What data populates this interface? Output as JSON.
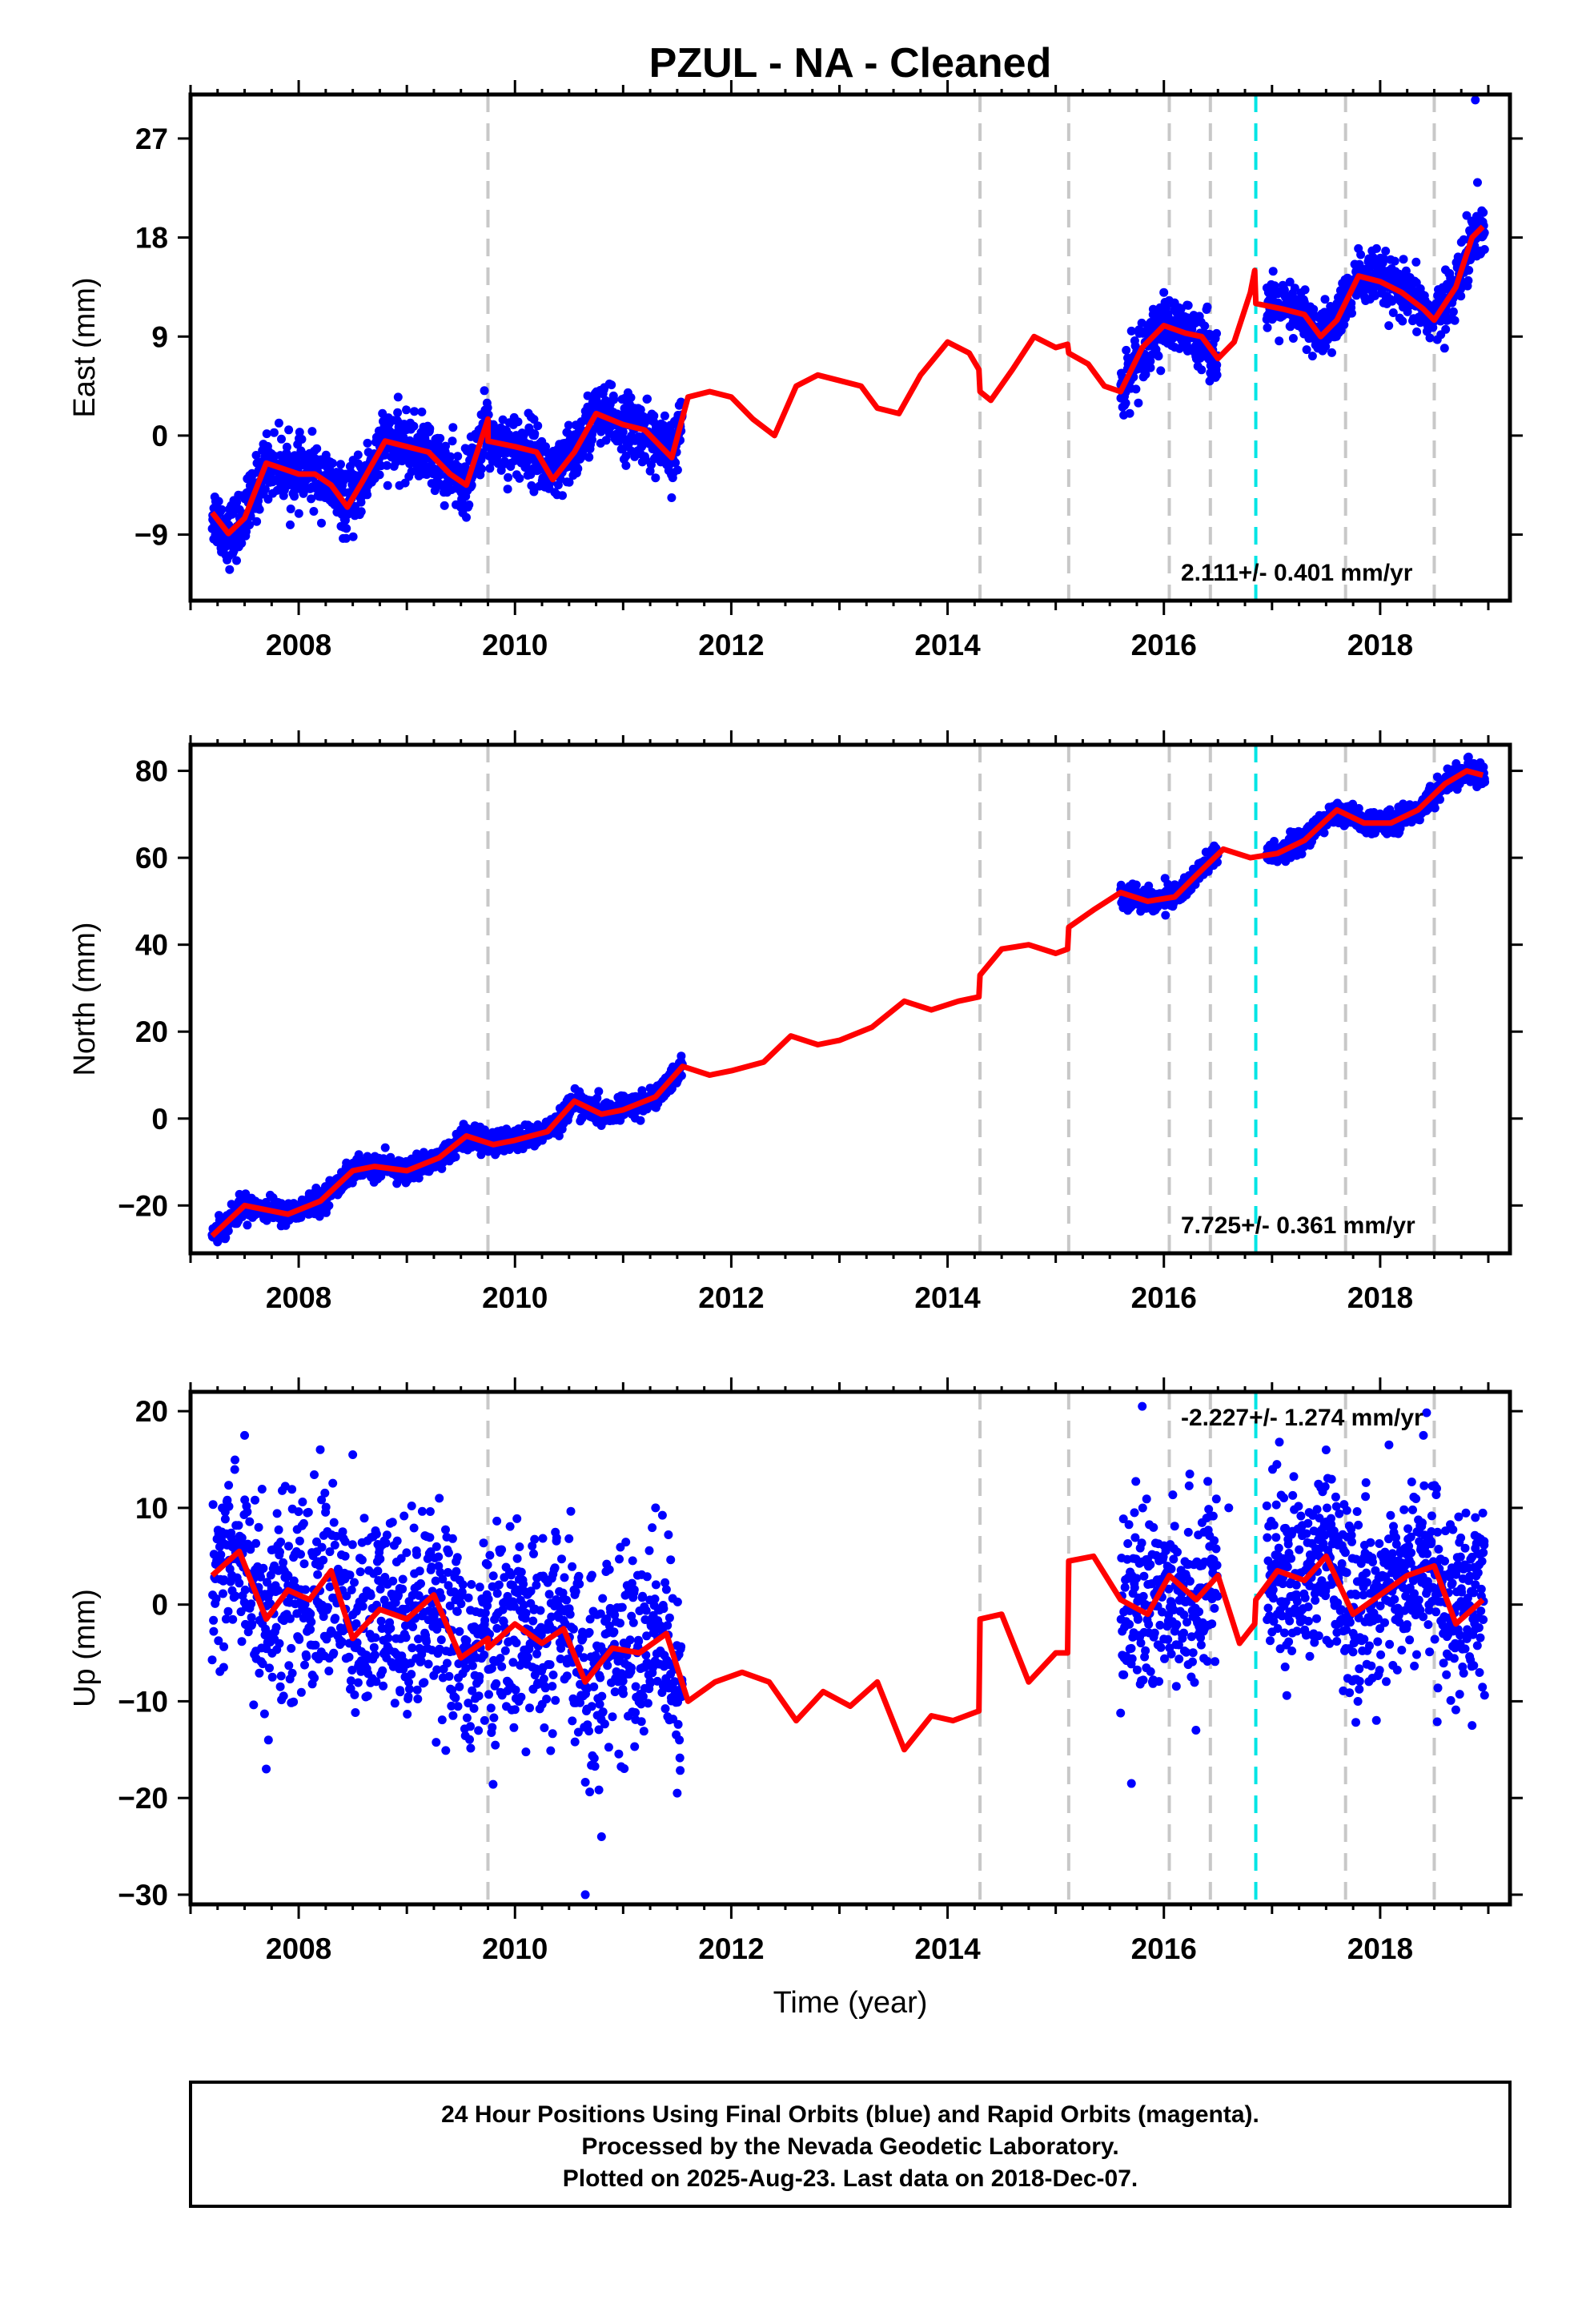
{
  "page": {
    "title": "PZUL  - NA - Cleaned",
    "footer": [
      "24 Hour Positions Using Final Orbits (blue) and Rapid Orbits (magenta).",
      "Processed by the Nevada Geodetic Laboratory.",
      "Plotted on 2025-Aug-23. Last data on 2018-Dec-07."
    ]
  },
  "colors": {
    "points": "#0000ff",
    "model": "#ff0000",
    "equipment_change": "#c8c8c8",
    "earthquake": "#00e5e5"
  },
  "chart_data": [
    {
      "type": "scatter",
      "panel": "East",
      "ylabel": "East (mm)",
      "xlabel": "",
      "xlim": [
        2007.0,
        2019.2
      ],
      "ylim": [
        -15,
        31
      ],
      "x_ticks": [
        2008,
        2010,
        2012,
        2014,
        2016,
        2018
      ],
      "y_ticks": [
        -9,
        0,
        9,
        18,
        27
      ],
      "rate_text": "2.111+/- 0.401 mm/yr",
      "rate_position": "bottom-right",
      "equipment_change_years": [
        2009.75,
        2014.3,
        2015.12,
        2016.05,
        2016.43,
        2017.68,
        2018.5
      ],
      "earthquake_years": [
        2016.85
      ],
      "model": {
        "name": "",
        "x": [
          2007.2,
          2007.35,
          2007.5,
          2007.7,
          2007.85,
          2008.0,
          2008.15,
          2008.3,
          2008.45,
          2008.6,
          2008.8,
          2009.0,
          2009.2,
          2009.4,
          2009.55,
          2009.75,
          2009.751,
          2010.0,
          2010.2,
          2010.35,
          2010.55,
          2010.75,
          2011.0,
          2011.2,
          2011.45,
          2011.6,
          2011.8,
          2012.0,
          2012.2,
          2012.4,
          2012.6,
          2012.8,
          2013.0,
          2013.2,
          2013.35,
          2013.55,
          2013.75,
          2014.0,
          2014.2,
          2014.29,
          2014.3,
          2014.4,
          2014.6,
          2014.8,
          2015.0,
          2015.11,
          2015.12,
          2015.3,
          2015.45,
          2015.6,
          2015.8,
          2016.0,
          2016.2,
          2016.35,
          2016.5,
          2016.65,
          2016.8,
          2016.84,
          2016.85,
          2017.1,
          2017.3,
          2017.45,
          2017.6,
          2017.8,
          2018.0,
          2018.2,
          2018.4,
          2018.5,
          2018.7,
          2018.85,
          2018.95
        ],
        "y": [
          -7,
          -8.9,
          -7.5,
          -2.5,
          -3.0,
          -3.5,
          -3.5,
          -4.5,
          -6.5,
          -4.0,
          -0.5,
          -1.0,
          -1.5,
          -3.5,
          -4.5,
          1.5,
          -0.5,
          -1.0,
          -1.5,
          -4.0,
          -1.5,
          2.0,
          1.0,
          0.5,
          -2.0,
          3.5,
          4.0,
          3.5,
          1.5,
          0,
          4.5,
          5.5,
          5.0,
          4.5,
          2.5,
          2.0,
          5.5,
          8.5,
          7.5,
          6.0,
          4.0,
          3.2,
          6.0,
          9.0,
          8.0,
          8.3,
          7.5,
          6.5,
          4.5,
          4.0,
          8.0,
          10.0,
          9.3,
          9.0,
          7.0,
          8.5,
          13.0,
          15.0,
          12.0,
          11.5,
          11.0,
          9.0,
          10.5,
          14.5,
          14.0,
          13.0,
          11.5,
          10.5,
          13.5,
          18.0,
          19.0
        ]
      },
      "points": [
        {
          "x": 2007.3,
          "y": -8.5
        },
        {
          "x": 2007.4,
          "y": -10.5
        },
        {
          "x": 2007.55,
          "y": -7.0
        },
        {
          "x": 2007.7,
          "y": -2.0
        },
        {
          "x": 2007.9,
          "y": -3.5
        },
        {
          "x": 2008.1,
          "y": -3.0
        },
        {
          "x": 2008.3,
          "y": -4.0
        },
        {
          "x": 2008.45,
          "y": -6.5
        },
        {
          "x": 2008.6,
          "y": -3.0
        },
        {
          "x": 2008.8,
          "y": 1.0
        },
        {
          "x": 2009.0,
          "y": -0.5
        },
        {
          "x": 2009.2,
          "y": -2.0
        },
        {
          "x": 2009.4,
          "y": -4.0
        },
        {
          "x": 2009.6,
          "y": -4.5
        },
        {
          "x": 2009.8,
          "y": 1.0
        },
        {
          "x": 2010.0,
          "y": -1.5
        },
        {
          "x": 2010.2,
          "y": -1.0
        },
        {
          "x": 2010.4,
          "y": -3.5
        },
        {
          "x": 2010.6,
          "y": 0.0
        },
        {
          "x": 2010.8,
          "y": 2.5
        },
        {
          "x": 2011.0,
          "y": 1.5
        },
        {
          "x": 2011.2,
          "y": 0.0
        },
        {
          "x": 2011.4,
          "y": -1.5
        },
        {
          "x": 2011.5,
          "y": 1.5
        },
        {
          "x": 2015.7,
          "y": 9.5
        },
        {
          "x": 2015.9,
          "y": 11.0
        },
        {
          "x": 2016.1,
          "y": 9.0
        },
        {
          "x": 2016.3,
          "y": 9.0
        },
        {
          "x": 2016.45,
          "y": 7.5
        },
        {
          "x": 2017.0,
          "y": 12.0
        },
        {
          "x": 2017.2,
          "y": 10.5
        },
        {
          "x": 2017.4,
          "y": 9.5
        },
        {
          "x": 2017.6,
          "y": 12.0
        },
        {
          "x": 2017.8,
          "y": 14.0
        },
        {
          "x": 2018.0,
          "y": 13.5
        },
        {
          "x": 2018.2,
          "y": 12.5
        },
        {
          "x": 2018.4,
          "y": 11.0
        },
        {
          "x": 2018.6,
          "y": 12.5
        },
        {
          "x": 2018.8,
          "y": 20.0
        },
        {
          "x": 2018.9,
          "y": 23.0
        },
        {
          "x": 2018.88,
          "y": 30.5
        }
      ],
      "point_density": {
        "segments": [
          {
            "x0": 2007.2,
            "x1": 2011.55,
            "count": 1400,
            "spread": 1.4
          },
          {
            "x0": 2015.6,
            "x1": 2016.5,
            "count": 260,
            "spread": 1.3
          },
          {
            "x0": 2016.95,
            "x1": 2018.97,
            "count": 640,
            "spread": 1.2
          }
        ]
      }
    },
    {
      "type": "scatter",
      "panel": "North",
      "ylabel": "North (mm)",
      "xlabel": "",
      "xlim": [
        2007.0,
        2019.2
      ],
      "ylim": [
        -31,
        86
      ],
      "x_ticks": [
        2008,
        2010,
        2012,
        2014,
        2016,
        2018
      ],
      "y_ticks": [
        -20,
        0,
        20,
        40,
        60,
        80
      ],
      "rate_text": "7.725+/- 0.361 mm/yr",
      "rate_position": "bottom-right",
      "equipment_change_years": [
        2009.75,
        2014.3,
        2015.12,
        2016.05,
        2016.43,
        2017.68,
        2018.5
      ],
      "earthquake_years": [
        2016.85
      ],
      "model": {
        "name": "",
        "x": [
          2007.2,
          2007.5,
          2007.9,
          2008.2,
          2008.5,
          2008.7,
          2009.0,
          2009.3,
          2009.55,
          2009.8,
          2010.0,
          2010.3,
          2010.55,
          2010.8,
          2011.0,
          2011.3,
          2011.55,
          2011.8,
          2012.0,
          2012.3,
          2012.55,
          2012.8,
          2013.0,
          2013.3,
          2013.6,
          2013.85,
          2014.1,
          2014.29,
          2014.3,
          2014.5,
          2014.75,
          2015.0,
          2015.11,
          2015.12,
          2015.35,
          2015.6,
          2015.85,
          2016.1,
          2016.3,
          2016.55,
          2016.8,
          2017.05,
          2017.3,
          2017.6,
          2017.85,
          2018.1,
          2018.35,
          2018.6,
          2018.8,
          2018.95
        ],
        "y": [
          -27,
          -20,
          -22,
          -19,
          -12,
          -11,
          -12,
          -9,
          -4,
          -6,
          -5,
          -3,
          4,
          1,
          2,
          5,
          12,
          10,
          11,
          13,
          19,
          17,
          18,
          21,
          27,
          25,
          27,
          28,
          33,
          39,
          40,
          38,
          39,
          44,
          48,
          52,
          50,
          51,
          56,
          62,
          60,
          61,
          64,
          71,
          68,
          68,
          71,
          77,
          80,
          79
        ]
      },
      "points": [
        {
          "x": 2007.3,
          "y": -26
        },
        {
          "x": 2007.6,
          "y": -19
        },
        {
          "x": 2008.0,
          "y": -21
        },
        {
          "x": 2008.5,
          "y": -12
        },
        {
          "x": 2009.0,
          "y": -11
        },
        {
          "x": 2009.5,
          "y": -5
        },
        {
          "x": 2010.0,
          "y": -5
        },
        {
          "x": 2010.5,
          "y": 3
        },
        {
          "x": 2011.0,
          "y": 2
        },
        {
          "x": 2011.5,
          "y": 11
        },
        {
          "x": 2015.7,
          "y": 50
        },
        {
          "x": 2016.0,
          "y": 51
        },
        {
          "x": 2016.4,
          "y": 57
        },
        {
          "x": 2017.1,
          "y": 62
        },
        {
          "x": 2017.6,
          "y": 70
        },
        {
          "x": 2018.0,
          "y": 68
        },
        {
          "x": 2018.5,
          "y": 76
        },
        {
          "x": 2018.9,
          "y": 80
        }
      ],
      "point_density": {
        "segments": [
          {
            "x0": 2007.2,
            "x1": 2011.55,
            "count": 1400,
            "spread": 1.3
          },
          {
            "x0": 2015.6,
            "x1": 2016.5,
            "count": 260,
            "spread": 1.4
          },
          {
            "x0": 2016.95,
            "x1": 2018.97,
            "count": 640,
            "spread": 1.2
          }
        ]
      }
    },
    {
      "type": "scatter",
      "panel": "Up",
      "ylabel": "Up (mm)",
      "xlabel": "Time (year)",
      "xlim": [
        2007.0,
        2019.2
      ],
      "ylim": [
        -31,
        22
      ],
      "x_ticks": [
        2008,
        2010,
        2012,
        2014,
        2016,
        2018
      ],
      "y_ticks": [
        -30,
        -20,
        -10,
        0,
        10,
        20
      ],
      "rate_text": "-2.227+/- 1.274 mm/yr",
      "rate_position": "top-right",
      "equipment_change_years": [
        2009.75,
        2014.3,
        2015.12,
        2016.05,
        2016.43,
        2017.68,
        2018.5
      ],
      "earthquake_years": [
        2016.85
      ],
      "model": {
        "name": "",
        "x": [
          2007.2,
          2007.45,
          2007.7,
          2007.9,
          2008.1,
          2008.3,
          2008.5,
          2008.75,
          2009.0,
          2009.25,
          2009.5,
          2009.75,
          2009.751,
          2010.0,
          2010.25,
          2010.45,
          2010.65,
          2010.9,
          2011.15,
          2011.4,
          2011.6,
          2011.85,
          2012.1,
          2012.35,
          2012.6,
          2012.85,
          2013.1,
          2013.35,
          2013.6,
          2013.85,
          2014.05,
          2014.29,
          2014.3,
          2014.5,
          2014.75,
          2015.0,
          2015.11,
          2015.12,
          2015.35,
          2015.6,
          2015.85,
          2016.05,
          2016.3,
          2016.5,
          2016.7,
          2016.84,
          2016.85,
          2017.05,
          2017.3,
          2017.5,
          2017.75,
          2018.0,
          2018.25,
          2018.5,
          2018.7,
          2018.95
        ],
        "y": [
          3,
          5.5,
          -1.5,
          1.5,
          0.5,
          3.5,
          -3.5,
          -0.5,
          -1.5,
          1.0,
          -5.5,
          -3.5,
          -4.5,
          -2.0,
          -4.0,
          -2.5,
          -8.0,
          -4.5,
          -5.0,
          -3.0,
          -10.0,
          -8.0,
          -7.0,
          -8.0,
          -12.0,
          -9.0,
          -10.5,
          -8.0,
          -15.0,
          -11.5,
          -12.0,
          -11.0,
          -1.5,
          -1.0,
          -8.0,
          -5.0,
          -5.0,
          4.5,
          5.0,
          0.5,
          -1.0,
          3.0,
          0.5,
          3.0,
          -4.0,
          -2.0,
          0.5,
          3.5,
          2.5,
          5.0,
          -1.0,
          1.0,
          3.0,
          4.0,
          -2.0,
          0.5
        ]
      },
      "points": [
        {
          "x": 2007.5,
          "y": 17.5
        },
        {
          "x": 2007.7,
          "y": -17
        },
        {
          "x": 2008.5,
          "y": 15.5
        },
        {
          "x": 2009.3,
          "y": 11
        },
        {
          "x": 2010.65,
          "y": -30
        },
        {
          "x": 2010.8,
          "y": -24
        },
        {
          "x": 2011.3,
          "y": 10
        },
        {
          "x": 2011.5,
          "y": -19.5
        },
        {
          "x": 2015.7,
          "y": -18.5
        },
        {
          "x": 2015.8,
          "y": 20.5
        },
        {
          "x": 2016.6,
          "y": 10
        },
        {
          "x": 2017.5,
          "y": 16
        },
        {
          "x": 2018.4,
          "y": 17.5
        },
        {
          "x": 2018.85,
          "y": -12.5
        },
        {
          "x": 2018.88,
          "y": 9
        }
      ],
      "point_density": {
        "segments": [
          {
            "x0": 2007.2,
            "x1": 2011.55,
            "count": 1200,
            "spread": 5.0
          },
          {
            "x0": 2015.6,
            "x1": 2016.5,
            "count": 260,
            "spread": 5.0
          },
          {
            "x0": 2016.95,
            "x1": 2018.97,
            "count": 640,
            "spread": 4.5
          }
        ]
      }
    }
  ]
}
